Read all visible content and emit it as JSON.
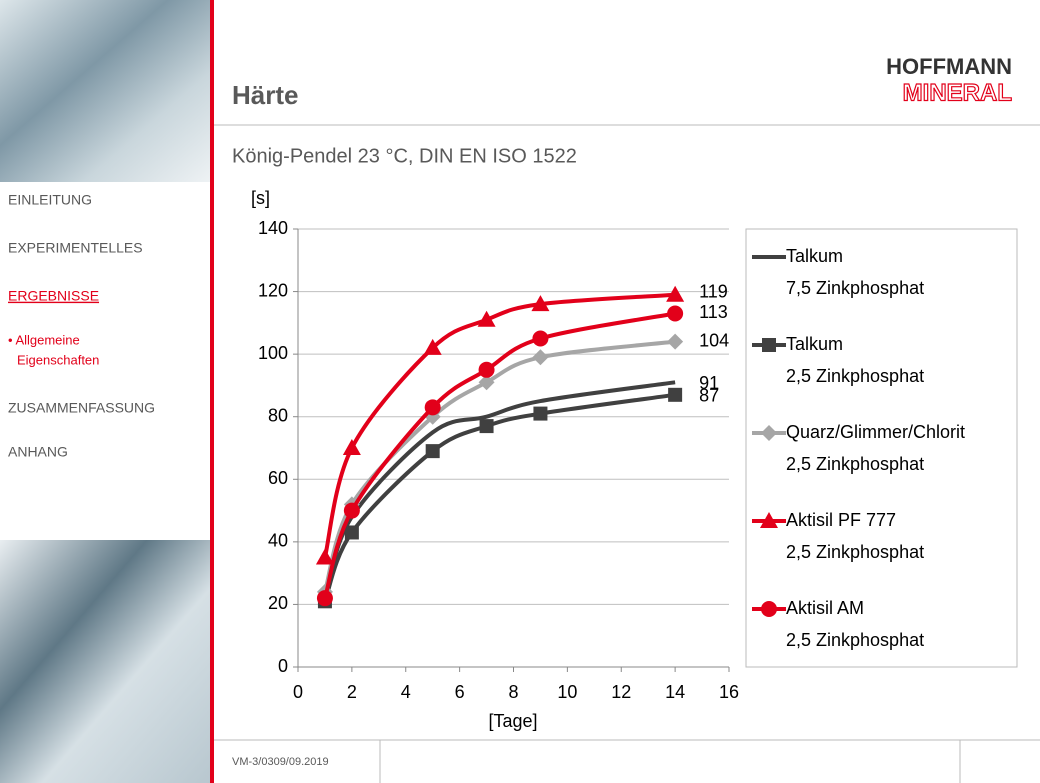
{
  "header": {
    "title": "Härte",
    "logo": [
      "HOFFMANN",
      "MINERAL"
    ]
  },
  "subtitle": "König-Pendel 23 °C, DIN EN ISO 1522",
  "nav": [
    "EINLEITUNG",
    "EXPERIMENTELLES",
    "ERGEBNISSE",
    "• Allgemeine",
    "Eigenschaften",
    "ZUSAMMENFASSUNG",
    "ANHANG"
  ],
  "footer": "VM-3/0309/09.2019",
  "chart_data": {
    "type": "line",
    "ylabel": "[s]",
    "xlabel": "[Tage]",
    "xlim": [
      0,
      16
    ],
    "xticks": [
      0,
      2,
      4,
      6,
      8,
      10,
      12,
      14,
      16
    ],
    "ylim": [
      0,
      140
    ],
    "yticks": [
      0,
      20,
      40,
      60,
      80,
      100,
      120,
      140
    ],
    "grid": true,
    "x": [
      1,
      2,
      5,
      7,
      9,
      14
    ],
    "series": [
      {
        "name": [
          "Talkum",
          "7,5 Zinkphosphat"
        ],
        "color": "#404040",
        "marker": "none",
        "values": [
          22,
          48,
          75,
          80,
          85,
          91
        ]
      },
      {
        "name": [
          "Talkum",
          "2,5 Zinkphosphat"
        ],
        "color": "#404040",
        "marker": "square",
        "values": [
          21,
          43,
          69,
          77,
          81,
          87
        ]
      },
      {
        "name": [
          "Quarz/Glimmer/Chlorit",
          "2,5 Zinkphosphat"
        ],
        "color": "#a6a6a6",
        "marker": "diamond",
        "values": [
          24,
          52,
          80,
          91,
          99,
          104
        ]
      },
      {
        "name": [
          "Aktisil PF 777",
          "2,5 Zinkphosphat"
        ],
        "color": "#e2001a",
        "marker": "triangle",
        "values": [
          35,
          70,
          102,
          111,
          116,
          119
        ]
      },
      {
        "name": [
          "Aktisil AM",
          "2,5 Zinkphosphat"
        ],
        "color": "#e2001a",
        "marker": "circle",
        "values": [
          22,
          50,
          83,
          95,
          105,
          113
        ]
      }
    ]
  }
}
